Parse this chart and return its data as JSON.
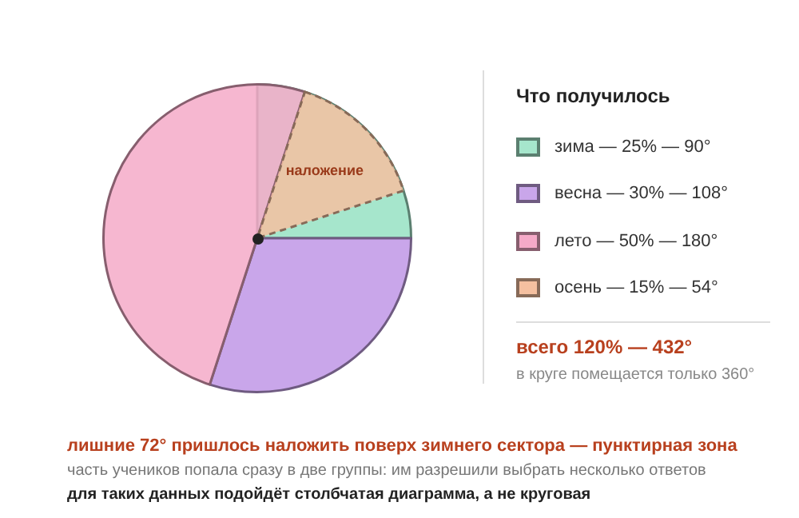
{
  "chart_data": {
    "type": "pie",
    "legend_title": "Что получилось",
    "legend": "right",
    "categories": [
      "зима — 25% — 90°",
      "весна — 30% — 108°",
      "лето — 50% — 180°",
      "осень — 15% — 54°"
    ],
    "values": [
      25,
      30,
      50,
      15
    ],
    "colors": [
      "#a6e6cc",
      "#c9a6ea",
      "#f5aac8",
      "#f5c0a0"
    ],
    "annotations": [
      "наложение",
      "всего 120% — 432°",
      "в круге помещается только 360°",
      "лишние 72° пришлось наложить поверх зимнего сектора — пунктирная зона",
      "часть учеников попала сразу в две группы: им разрешили выбрать несколько ответов",
      "для таких данных подойдёт столбчатая диаграмма, а не круговая"
    ]
  }
}
